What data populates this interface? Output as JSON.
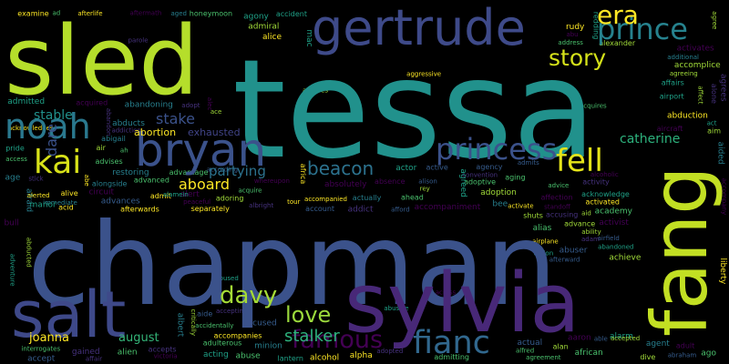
{
  "word_cloud": {
    "background": "#000000",
    "palette": [
      "#440154",
      "#46327e",
      "#365c8d",
      "#277f8e",
      "#1fa187",
      "#4ac16d",
      "#a0da39",
      "#fde725"
    ],
    "words": [
      {
        "text": "tessa",
        "color": "#21918c"
      },
      {
        "text": "chapman",
        "color": "#3b528b"
      },
      {
        "text": "sled",
        "color": "#b5de2b"
      },
      {
        "text": "sylvia",
        "color": "#482878"
      },
      {
        "text": "salt",
        "color": "#3e4989"
      },
      {
        "text": "gertrude",
        "color": "#3e4a89"
      },
      {
        "text": "fang",
        "color": "#c2df23"
      },
      {
        "text": "bryan",
        "color": "#3b528b"
      },
      {
        "text": "noah",
        "color": "#2a788e"
      },
      {
        "text": "prince",
        "color": "#26828e"
      },
      {
        "text": "princess",
        "color": "#3b528b"
      },
      {
        "text": "kai",
        "color": "#d8e219"
      },
      {
        "text": "era",
        "color": "#fde725"
      },
      {
        "text": "story",
        "color": "#d5e21a"
      },
      {
        "text": "fell",
        "color": "#e5e419"
      },
      {
        "text": "fianc",
        "color": "#31688e"
      },
      {
        "text": "famous",
        "color": "#440154"
      },
      {
        "text": "davy",
        "color": "#a5db36"
      },
      {
        "text": "love",
        "color": "#9bd93c"
      },
      {
        "text": "stalker",
        "color": "#2db27d"
      },
      {
        "text": "beacon",
        "color": "#2c728e"
      },
      {
        "text": "partying",
        "color": "#2c728e"
      },
      {
        "text": "stake",
        "color": "#3b528b"
      },
      {
        "text": "catherine",
        "color": "#2db27d"
      },
      {
        "text": "stable",
        "color": "#21918c"
      },
      {
        "text": "joanna",
        "color": "#fde725"
      },
      {
        "text": "august",
        "color": "#34b679"
      },
      {
        "text": "dare",
        "color": "#3b528b"
      },
      {
        "text": "abortion",
        "color": "#fde725"
      },
      {
        "text": "aboard",
        "color": "#fde725"
      },
      {
        "text": "exhausted",
        "color": "#414487"
      }
    ],
    "small_words": [
      "admitting",
      "achieve",
      "abducts",
      "adoring",
      "afraid",
      "affairs",
      "abuser",
      "academy",
      "accepting",
      "admitted",
      "adoptive",
      "adoption",
      "agony",
      "alone",
      "alongside",
      "accompanies",
      "adulterous",
      "accompaniment",
      "absolutely",
      "advice",
      "africa",
      "african",
      "aided",
      "airfield",
      "alec",
      "abe",
      "adam",
      "alive",
      "advances",
      "adult",
      "aging",
      "affection",
      "agreed",
      "ability",
      "accidentally",
      "accused",
      "alpha",
      "alien",
      "admit",
      "interrogates",
      "age",
      "ah",
      "alison",
      "rey",
      "liberty",
      "aaron",
      "accepts",
      "activity",
      "afford",
      "accident",
      "accompanied",
      "acid",
      "abandoning",
      "ahead",
      "stick",
      "abandoned",
      "advanced",
      "alfred",
      "restoring",
      "whereupon",
      "alias",
      "dive",
      "actor",
      "afterward",
      "agree",
      "air",
      "afterlife",
      "admits",
      "ace",
      "acquired",
      "actual",
      "aircraft",
      "activate",
      "separately",
      "alcohol",
      "advises",
      "alexander",
      "activated",
      "account",
      "accompany",
      "agreement",
      "alice",
      "rudy",
      "abu",
      "abduction",
      "adopt",
      "aim",
      "admiral",
      "acknowledge",
      "affect",
      "accomplice",
      "gained",
      "actually",
      "agrees",
      "acting",
      "adopted",
      "active",
      "afterwards",
      "alarm",
      "acquire",
      "tour",
      "standoff",
      "additional",
      "activates",
      "airplane",
      "agent",
      "circuit",
      "airport",
      "accept",
      "alan",
      "lantern",
      "alerted",
      "activist",
      "albert",
      "according",
      "immediate",
      "bee",
      "ago",
      "albright",
      "alert",
      "aid",
      "abigail",
      "advance",
      "advantage",
      "access",
      "convention",
      "able",
      "aggressive",
      "aftermath",
      "parole",
      "act",
      "abandon",
      "absence",
      "manor",
      "minion",
      "redding",
      "adventure",
      "addict",
      "agency",
      "shuts",
      "alamein",
      "honeymoon",
      "ad",
      "abuse",
      "examine",
      "aide",
      "victoria",
      "bull",
      "abused",
      "abraham",
      "accuses",
      "alcoholic",
      "peaceful",
      "addiction",
      "accusing",
      "agreeing",
      "abusive",
      "critically",
      "accepted",
      "aged",
      "action",
      "pride",
      "abducted",
      "mac",
      "address",
      "acquires",
      "affair",
      "acknowledges",
      "across"
    ]
  }
}
